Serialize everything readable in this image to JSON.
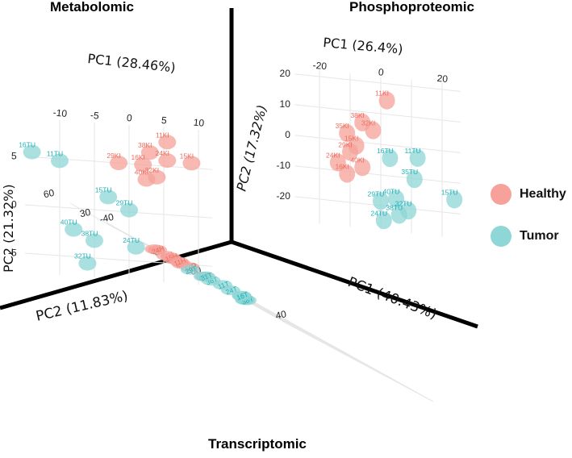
{
  "titles": {
    "metabolomic": "Metabolomic",
    "phosphoproteomic": "Phosphoproteomic",
    "transcriptomic": "Transcriptomic"
  },
  "colors": {
    "healthy": "#f6a29a",
    "tumor": "#8fd6d6",
    "healthy_text": "#ee6b5e",
    "tumor_text": "#1fb2b8"
  },
  "legend": [
    {
      "label": "Healthy",
      "color": "#f6a29a"
    },
    {
      "label": "Tumor",
      "color": "#8fd6d6"
    }
  ],
  "chart_data": [
    {
      "type": "scatter",
      "title": "Metabolomic",
      "xlabel": "PC1 (28.46%)",
      "ylabel": "PC2 (21.32%)",
      "xticks": [
        "-10",
        "-5",
        "0",
        "5",
        "10"
      ],
      "yticks": [
        "5",
        "0",
        "-5"
      ],
      "series": [
        {
          "name": "Healthy",
          "points": [
            {
              "label": "11KI",
              "x": 5.5,
              "y": 7.5
            },
            {
              "label": "38KI",
              "x": 3,
              "y": 6.3
            },
            {
              "label": "24KI",
              "x": 5.5,
              "y": 5.6
            },
            {
              "label": "29KI",
              "x": -1.5,
              "y": 5.0
            },
            {
              "label": "16KI",
              "x": 2,
              "y": 5.0
            },
            {
              "label": "15KI",
              "x": 9,
              "y": 5.5
            },
            {
              "label": "40KI",
              "x": 2.5,
              "y": 3.5
            },
            {
              "label": "32KI",
              "x": 4,
              "y": 3.8
            }
          ]
        },
        {
          "name": "Tumor",
          "points": [
            {
              "label": "16TU",
              "x": -14,
              "y": 5.5
            },
            {
              "label": "11TU",
              "x": -10,
              "y": 4.8
            },
            {
              "label": "15TU",
              "x": -3,
              "y": 1.4
            },
            {
              "label": "29TU",
              "x": 0,
              "y": 0.2
            },
            {
              "label": "40TU",
              "x": -8,
              "y": -2.2
            },
            {
              "label": "38TU",
              "x": -5,
              "y": -3.2
            },
            {
              "label": "24TU",
              "x": 1,
              "y": -3.6
            },
            {
              "label": "32TU",
              "x": -6,
              "y": -5.6
            }
          ]
        }
      ]
    },
    {
      "type": "scatter",
      "title": "Phosphoproteomic",
      "xlabel": "PC1 (26.4%)",
      "ylabel": "PC2 (17.32%)",
      "xticks": [
        "-20",
        "0",
        "20"
      ],
      "yticks": [
        "20",
        "10",
        "0",
        "-10",
        "-20"
      ],
      "series": [
        {
          "name": "Healthy",
          "points": [
            {
              "label": "11KI",
              "x": 2,
              "y": 14.5
            },
            {
              "label": "38KI",
              "x": -6,
              "y": 6.5
            },
            {
              "label": "32KI",
              "x": -2.5,
              "y": 4.3
            },
            {
              "label": "35KI",
              "x": -11,
              "y": 2.5
            },
            {
              "label": "15KI",
              "x": -8,
              "y": -1.3
            },
            {
              "label": "29KI",
              "x": -10,
              "y": -3.5
            },
            {
              "label": "24KI",
              "x": -14,
              "y": -7.4
            },
            {
              "label": "40KI",
              "x": -6,
              "y": -8.1
            },
            {
              "label": "16KI",
              "x": -11,
              "y": -10.8
            }
          ]
        },
        {
          "name": "Tumor",
          "points": [
            {
              "label": "11TU",
              "x": 12,
              "y": -3.2
            },
            {
              "label": "16TU",
              "x": 3,
              "y": -4.2
            },
            {
              "label": "35TU",
              "x": 11,
              "y": -10.2
            },
            {
              "label": "15TU",
              "x": 24,
              "y": -15.5
            },
            {
              "label": "40TU",
              "x": 5,
              "y": -17.2
            },
            {
              "label": "29TU",
              "x": 0,
              "y": -18.5
            },
            {
              "label": "32TU",
              "x": 9,
              "y": -20.7
            },
            {
              "label": "38TU",
              "x": 6,
              "y": -22.4
            },
            {
              "label": "24TU",
              "x": 1,
              "y": -24.7
            }
          ]
        }
      ]
    },
    {
      "type": "scatter",
      "title": "Transcriptomic",
      "xlabel": "PC1 (40.43%)",
      "ylabel": "PC2 (11.83%)",
      "xticks": [
        "-40",
        "0",
        "40"
      ],
      "yticks": [
        "60",
        "30",
        "-30",
        "-60"
      ],
      "series": [
        {
          "name": "Healthy",
          "points": [
            {
              "label": "35H",
              "x": -38,
              "y": 30
            },
            {
              "label": "32H",
              "x": -31,
              "y": 33
            },
            {
              "label": "40H",
              "x": -30,
              "y": 22
            },
            {
              "label": "29H",
              "x": -25,
              "y": 12
            },
            {
              "label": "38H",
              "x": -38,
              "y": 15
            },
            {
              "label": "15H",
              "x": -50,
              "y": -5
            },
            {
              "label": "11H",
              "x": -50,
              "y": -12
            },
            {
              "label": "24H",
              "x": -55,
              "y": -3
            },
            {
              "label": "16H",
              "x": -55,
              "y": -30
            }
          ]
        },
        {
          "name": "Tumor",
          "points": [
            {
              "label": "29T",
              "x": -6,
              "y": 58
            },
            {
              "label": "32T",
              "x": 19,
              "y": 58
            },
            {
              "label": "35T",
              "x": 8,
              "y": 38
            },
            {
              "label": "40T",
              "x": -10,
              "y": 40
            },
            {
              "label": "36T",
              "x": -12,
              "y": 30
            },
            {
              "label": "38T",
              "x": 0,
              "y": 22
            },
            {
              "label": "31T",
              "x": -40,
              "y": -16
            },
            {
              "label": "24T",
              "x": -28,
              "y": -15
            },
            {
              "label": "15T",
              "x": -30,
              "y": -28
            },
            {
              "label": "16T",
              "x": -38,
              "y": -42
            },
            {
              "label": "11T",
              "x": -50,
              "y": -48
            }
          ]
        }
      ]
    }
  ]
}
